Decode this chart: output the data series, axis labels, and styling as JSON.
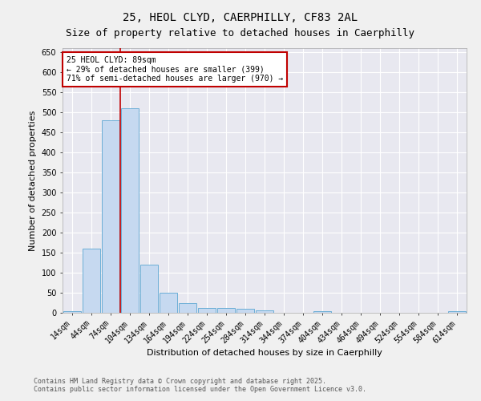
{
  "title_line1": "25, HEOL CLYD, CAERPHILLY, CF83 2AL",
  "title_line2": "Size of property relative to detached houses in Caerphilly",
  "xlabel": "Distribution of detached houses by size in Caerphilly",
  "ylabel": "Number of detached properties",
  "bin_labels": [
    "14sqm",
    "44sqm",
    "74sqm",
    "104sqm",
    "134sqm",
    "164sqm",
    "194sqm",
    "224sqm",
    "254sqm",
    "284sqm",
    "314sqm",
    "344sqm",
    "374sqm",
    "404sqm",
    "434sqm",
    "464sqm",
    "494sqm",
    "524sqm",
    "554sqm",
    "584sqm",
    "614sqm"
  ],
  "bar_values": [
    5,
    160,
    480,
    510,
    120,
    50,
    25,
    13,
    13,
    10,
    6,
    0,
    0,
    5,
    0,
    0,
    0,
    0,
    0,
    0,
    5
  ],
  "bar_color": "#c6d9f0",
  "bar_edge_color": "#6baed6",
  "vline_color": "#c00000",
  "ylim": [
    0,
    660
  ],
  "yticks": [
    0,
    50,
    100,
    150,
    200,
    250,
    300,
    350,
    400,
    450,
    500,
    550,
    600,
    650
  ],
  "annotation_text": "25 HEOL CLYD: 89sqm\n← 29% of detached houses are smaller (399)\n71% of semi-detached houses are larger (970) →",
  "annotation_box_color": "#ffffff",
  "annotation_box_edge": "#c00000",
  "footer1": "Contains HM Land Registry data © Crown copyright and database right 2025.",
  "footer2": "Contains public sector information licensed under the Open Government Licence v3.0.",
  "background_color": "#f0f0f0",
  "plot_background": "#e8e8f0",
  "grid_color": "#ffffff",
  "title_fontsize": 10,
  "subtitle_fontsize": 9,
  "tick_fontsize": 7,
  "label_fontsize": 8,
  "footer_fontsize": 6,
  "annot_fontsize": 7
}
